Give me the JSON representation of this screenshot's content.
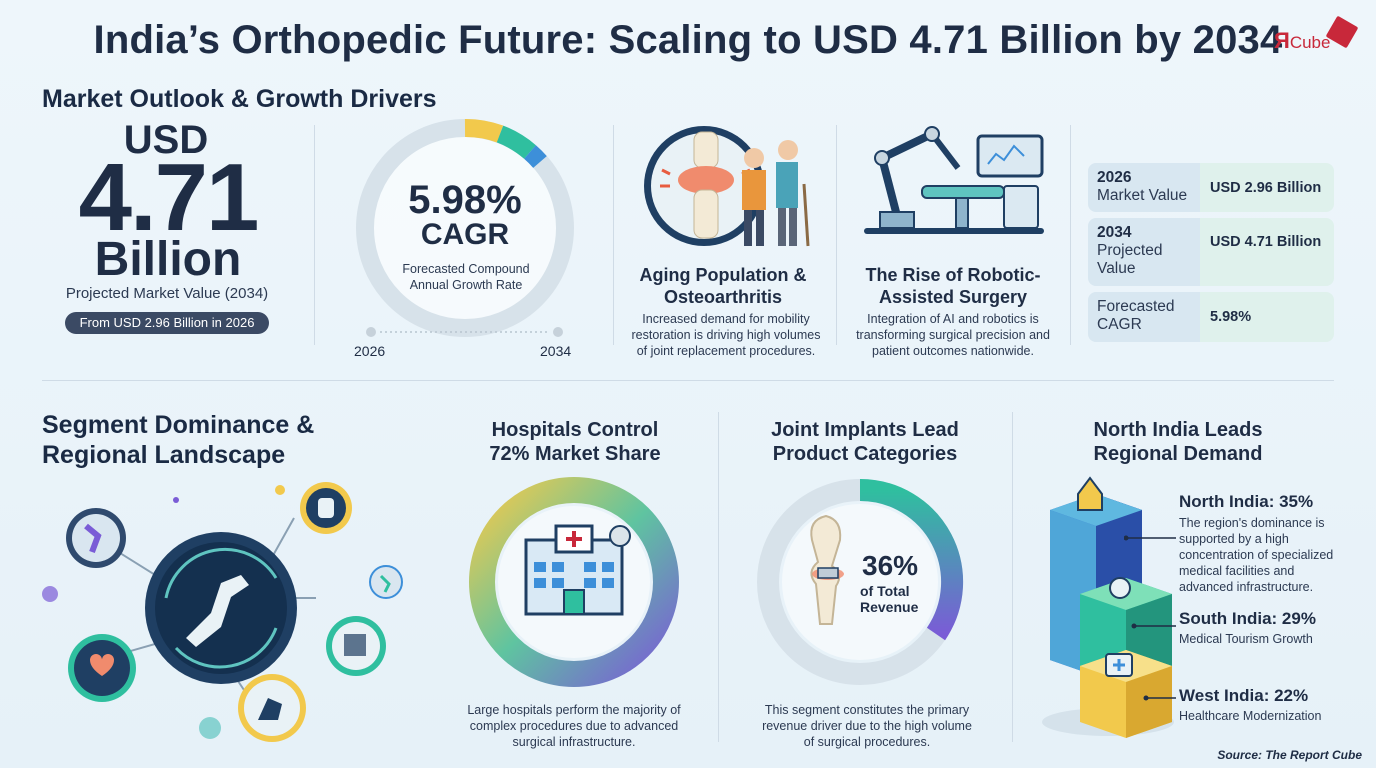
{
  "title": "India’s Orthopedic Future: Scaling to USD 4.71 Billion by 2034",
  "logo": {
    "r": "Я",
    "cube": "Cube"
  },
  "outlook": {
    "heading": "Market Outlook & Growth Drivers",
    "big_prefix": "USD",
    "big_value": "4.71",
    "big_unit": "Billion",
    "big_caption": "Projected Market Value (2034)",
    "pill": "From USD 2.96 Billion in 2026",
    "cagr_value": "5.98%",
    "cagr_label": "CAGR",
    "cagr_desc": "Forecasted Compound Annual Growth Rate",
    "year_start": "2026",
    "year_end": "2034"
  },
  "drivers": [
    {
      "title": "Aging Population & Osteoarthritis",
      "desc": "Increased demand for mobility restoration is driving high volumes of joint replacement procedures."
    },
    {
      "title": "The Rise of Robotic-Assisted Surgery",
      "desc": "Integration of AI and robotics is transforming surgical precision and patient outcomes nationwide."
    }
  ],
  "kpis": [
    {
      "label_strong": "2026",
      "label": "Market Value",
      "value": "USD 2.96 Billion"
    },
    {
      "label_strong": "2034",
      "label": "Projected Value",
      "value": "USD 4.71 Billion"
    },
    {
      "label_strong": "",
      "label": "Forecasted CAGR",
      "value": "5.98%"
    }
  ],
  "segment": {
    "heading": "Segment Dominance & Regional Landscape"
  },
  "hospitals": {
    "title": "Hospitals Control 72% Market Share",
    "desc": "Large hospitals perform the majority of complex procedures due to advanced surgical infrastructure."
  },
  "implants": {
    "title": "Joint Implants Lead Product Categories",
    "pct": "36%",
    "pct_sub": "of Total Revenue",
    "desc": "This segment constitutes the primary revenue driver due to the high volume of surgical procedures."
  },
  "regions": {
    "title": "North India Leads Regional Demand",
    "items": [
      {
        "name": "North India: 35%",
        "desc": "The region's dominance is supported by a high concentration of specialized medical facilities and advanced infrastructure."
      },
      {
        "name": "South India: 29%",
        "desc": "Medical Tourism Growth"
      },
      {
        "name": "West India: 22%",
        "desc": "Healthcare Modernization"
      }
    ]
  },
  "source": "Source: The Report Cube",
  "colors": {
    "navy": "#1f2d45",
    "teal": "#2fbf9f",
    "purple": "#7a5cd6",
    "yellow": "#f2c94c",
    "blue": "#3d8fd9",
    "red": "#c8283a"
  }
}
